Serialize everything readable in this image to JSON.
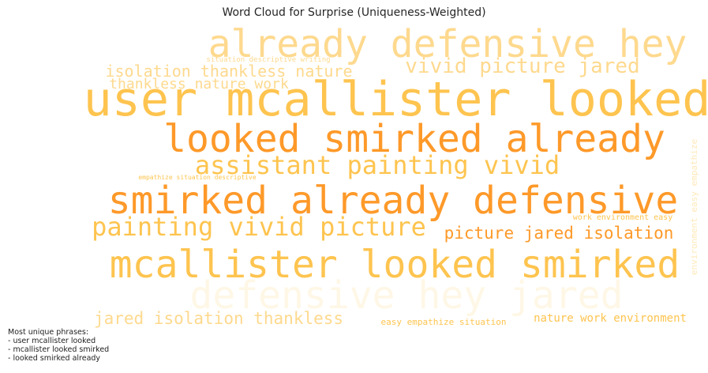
{
  "chart_data": {
    "type": "wordcloud",
    "title": "Word Cloud for Surprise (Uniqueness-Weighted)",
    "words": [
      {
        "text": "already defensive hey",
        "weight": 0.4,
        "color": "#fed98e"
      },
      {
        "text": "vivid picture jared",
        "weight": 0.3,
        "color": "#fed98e"
      },
      {
        "text": "isolation thankless nature",
        "weight": 0.2,
        "color": "#fed98e"
      },
      {
        "text": "thankless nature work",
        "weight": 0.18,
        "color": "#fed98e"
      },
      {
        "text": "situation descriptive writing",
        "weight": 0.08,
        "color": "#fed98e"
      },
      {
        "text": "user mcallister looked",
        "weight": 1.0,
        "color": "#fec44f"
      },
      {
        "text": "looked smirked already",
        "weight": 0.95,
        "color": "#fe9929"
      },
      {
        "text": "assistant painting vivid",
        "weight": 0.55,
        "color": "#fec44f"
      },
      {
        "text": "empathize situation descriptive",
        "weight": 0.06,
        "color": "#fec44f"
      },
      {
        "text": "smirked already defensive",
        "weight": 0.9,
        "color": "#fe9929"
      },
      {
        "text": "painting vivid picture",
        "weight": 0.55,
        "color": "#fec44f"
      },
      {
        "text": "picture jared isolation",
        "weight": 0.45,
        "color": "#fe9929"
      },
      {
        "text": "mcallister looked smirked",
        "weight": 0.95,
        "color": "#fec44f"
      },
      {
        "text": "defensive hey jared",
        "weight": 0.25,
        "color": "#fff7e6"
      },
      {
        "text": "jared isolation thankless",
        "weight": 0.3,
        "color": "#fed98e"
      },
      {
        "text": "easy empathize situation",
        "weight": 0.15,
        "color": "#fec44f"
      },
      {
        "text": "nature work environment",
        "weight": 0.25,
        "color": "#fec44f"
      },
      {
        "text": "work environment easy",
        "weight": 0.12,
        "color": "#fec44f"
      },
      {
        "text": "environment easy empathize",
        "weight": 0.12,
        "color": "#ffe9b8"
      }
    ]
  },
  "footnote": {
    "heading": "Most unique phrases:",
    "items": [
      "- user mcallister looked",
      "- mcallister looked smirked",
      "- looked smirked already"
    ]
  }
}
